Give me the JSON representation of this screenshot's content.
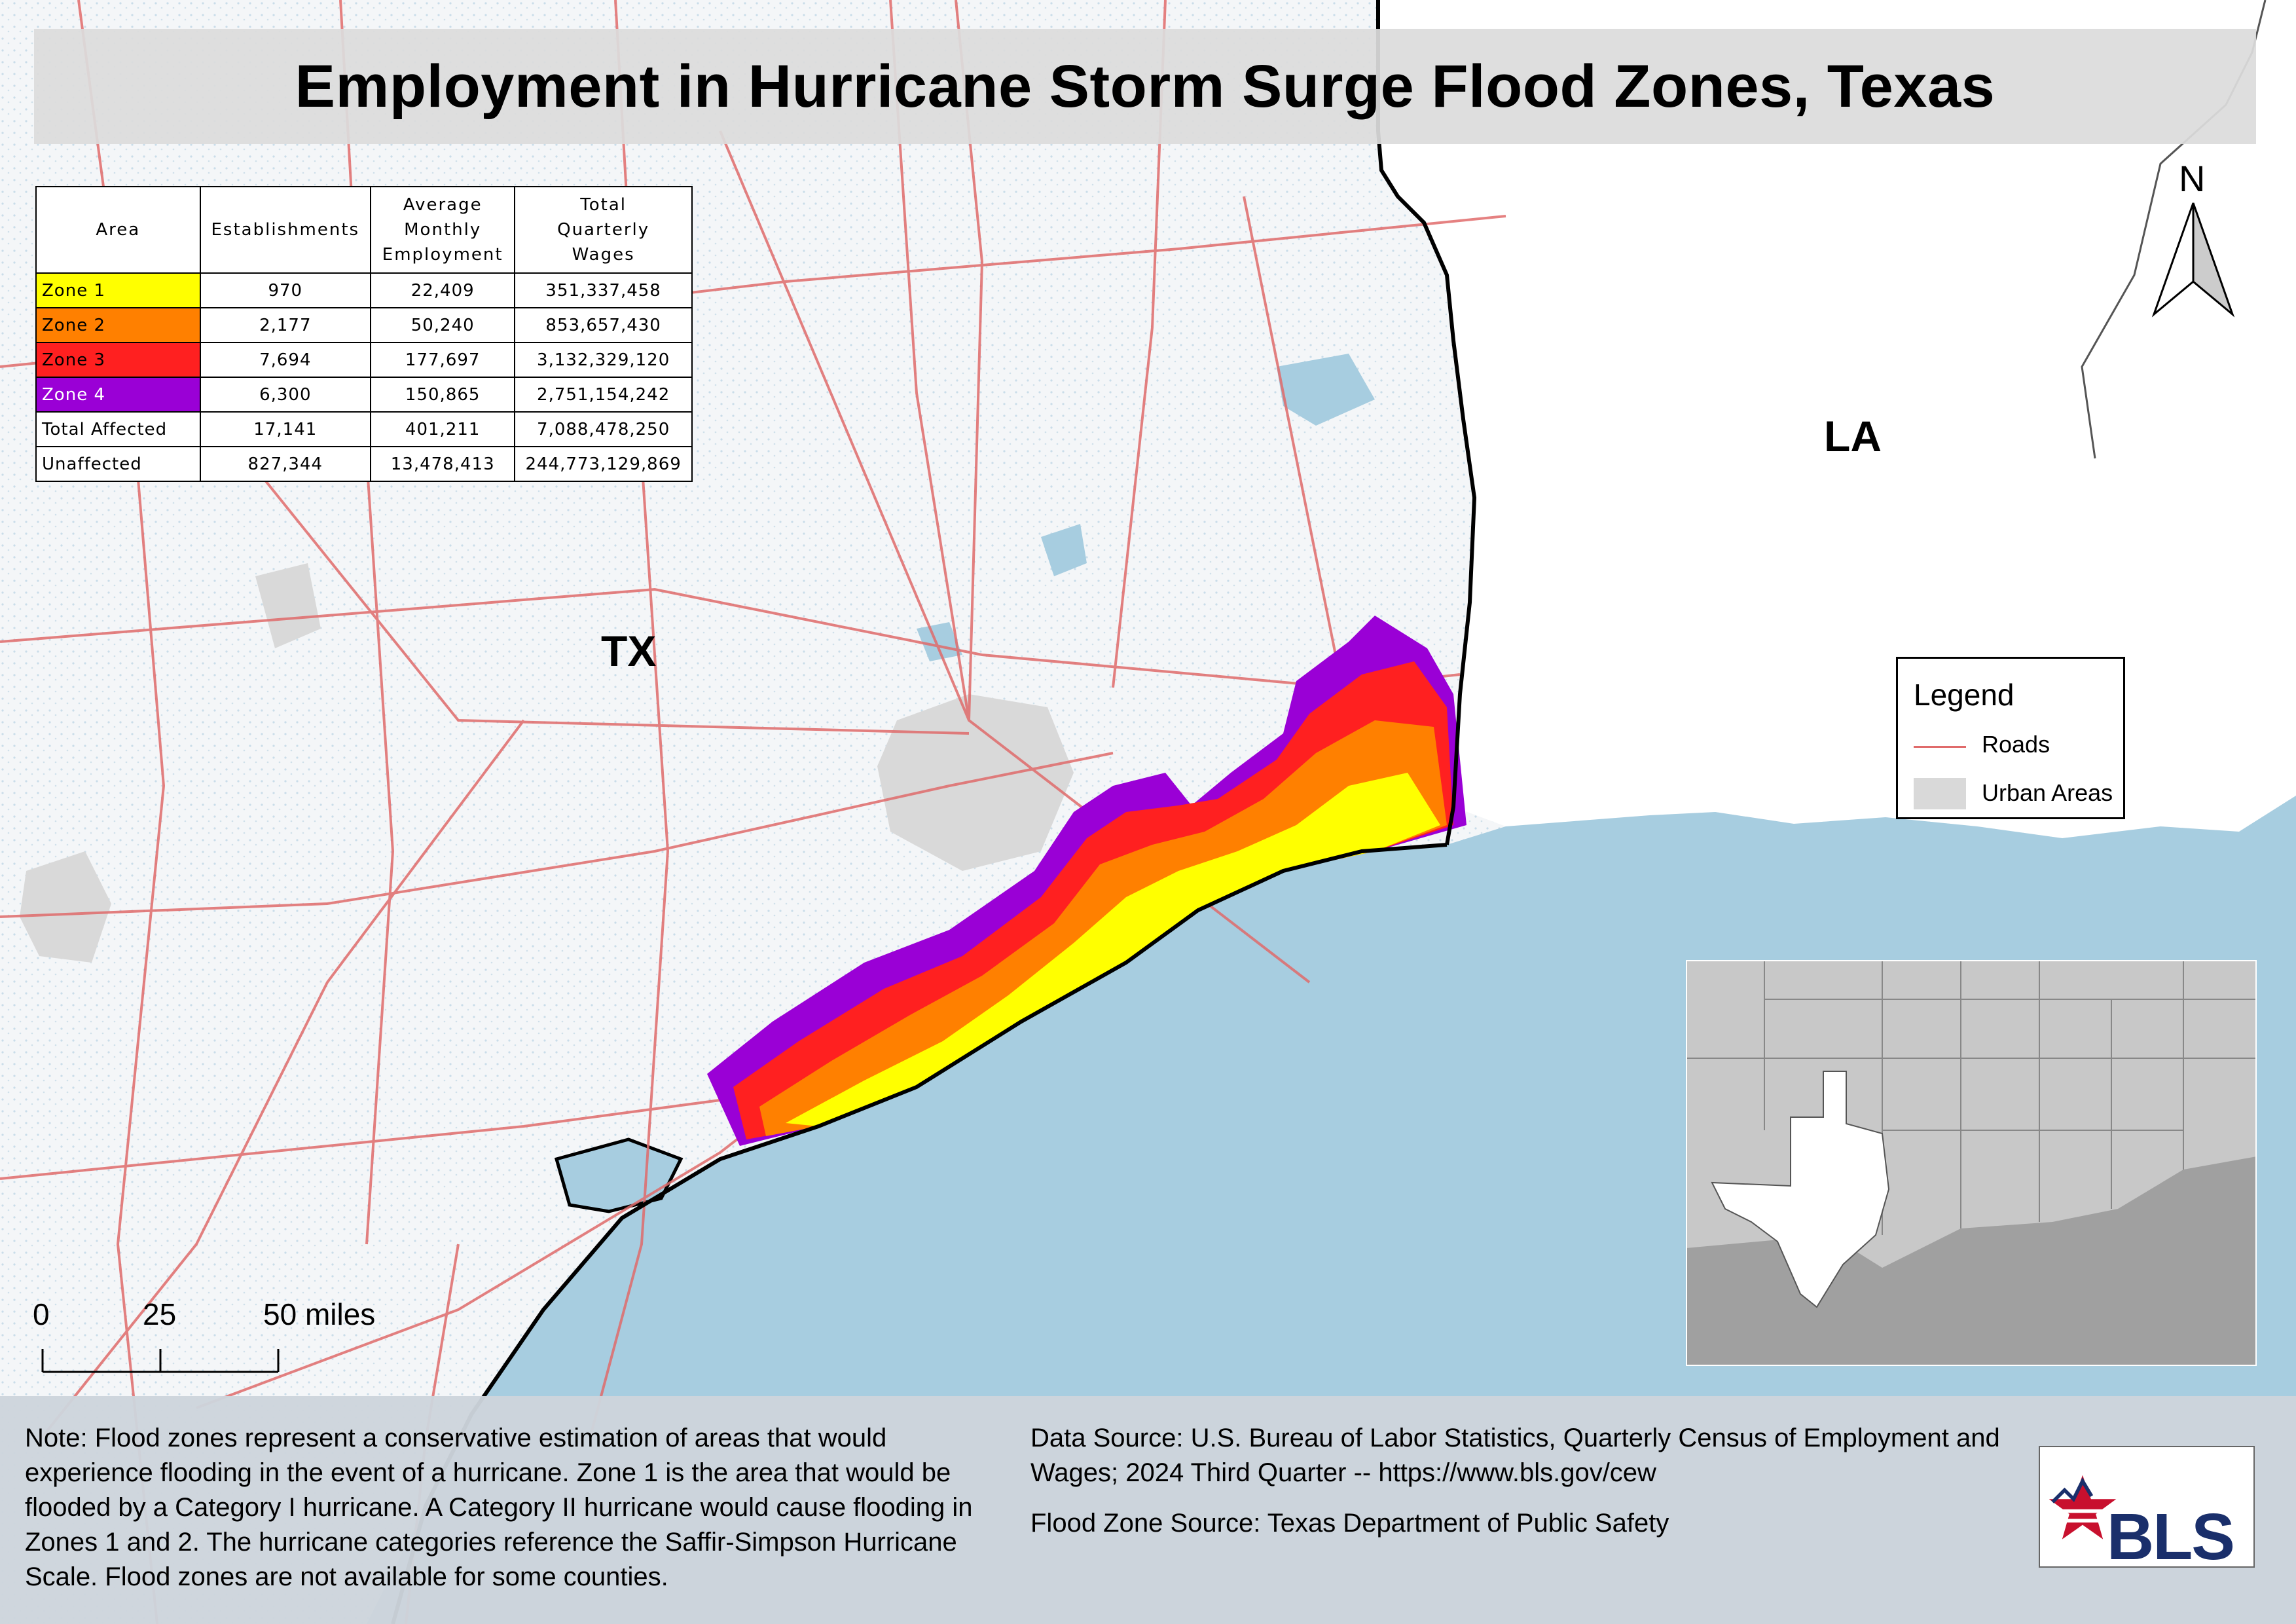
{
  "title": "Employment in Hurricane Storm Surge Flood Zones, Texas",
  "table": {
    "headers": [
      [
        "Area"
      ],
      [
        "Establishments"
      ],
      [
        "Average",
        "Monthly",
        "Employment"
      ],
      [
        "Total",
        "Quarterly",
        "Wages"
      ]
    ],
    "rows": [
      {
        "area": "Zone 1",
        "establishments": "970",
        "employment": "22,409",
        "wages": "351,337,458",
        "color": "#ffff00",
        "text_color": "#000000"
      },
      {
        "area": "Zone 2",
        "establishments": "2,177",
        "employment": "50,240",
        "wages": "853,657,430",
        "color": "#ff8000",
        "text_color": "#000000"
      },
      {
        "area": "Zone 3",
        "establishments": "7,694",
        "employment": "177,697",
        "wages": "3,132,329,120",
        "color": "#ff2020",
        "text_color": "#000000"
      },
      {
        "area": "Zone 4",
        "establishments": "6,300",
        "employment": "150,865",
        "wages": "2,751,154,242",
        "color": "#9a00d6",
        "text_color": "#ffffff"
      },
      {
        "area": "Total Affected",
        "establishments": "17,141",
        "employment": "401,211",
        "wages": "7,088,478,250",
        "color": "#ffffff",
        "text_color": "#000000"
      },
      {
        "area": "Unaffected",
        "establishments": "827,344",
        "employment": "13,478,413",
        "wages": "244,773,129,869",
        "color": "#ffffff",
        "text_color": "#000000"
      }
    ]
  },
  "map": {
    "labels": {
      "texas": "TX",
      "louisiana": "LA"
    },
    "north_label": "N",
    "colors": {
      "water": "#a7cde0",
      "land": "#f4f6f8",
      "louisiana": "#ffffff",
      "roads": "#e06b6b",
      "urban": "#d9d9d9",
      "zone1": "#ffff00",
      "zone2": "#ff8000",
      "zone3": "#ff2020",
      "zone4": "#9a00d6"
    }
  },
  "legend": {
    "title": "Legend",
    "items": [
      {
        "label": "Roads",
        "type": "line",
        "color": "#e06b6b"
      },
      {
        "label": "Urban Areas",
        "type": "fill",
        "color": "#d9d9d9"
      }
    ]
  },
  "scale_bar": {
    "labels": [
      "0",
      "25",
      "50 miles"
    ]
  },
  "footer": {
    "note": "Note: Flood zones represent a conservative estimation of areas that would experience flooding in the event of a hurricane. Zone 1 is the area that would be flooded by a Category I hurricane. A Category II hurricane would cause flooding in Zones 1 and 2. The hurricane categories reference the Saffir-Simpson Hurricane Scale. Flood zones are not available for some counties.",
    "data_source": "Data Source: U.S. Bureau of Labor Statistics, Quarterly Census of Employment and Wages; 2024 Third Quarter -- https://www.bls.gov/cew",
    "flood_source": "Flood Zone Source: Texas Department of Public Safety",
    "logo_text": "BLS"
  }
}
